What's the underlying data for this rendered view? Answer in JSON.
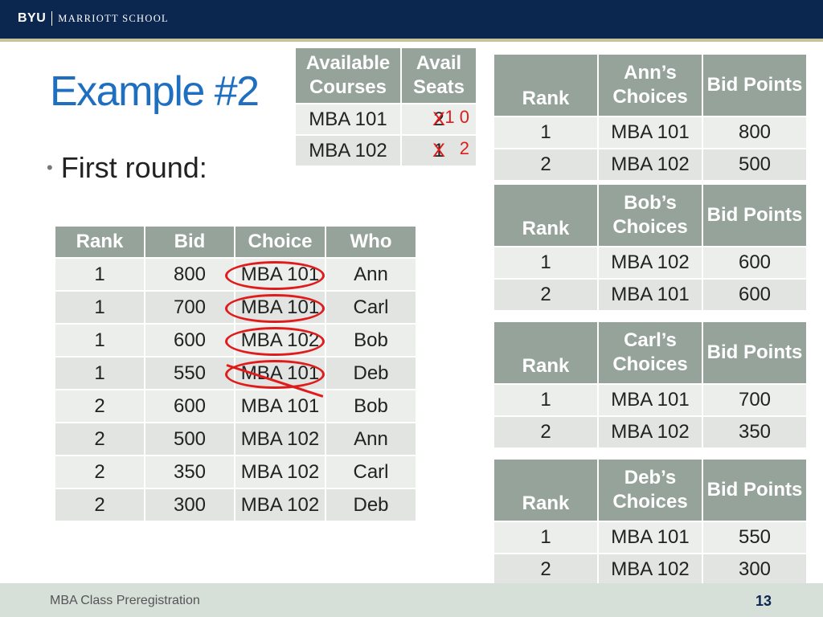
{
  "header": {
    "logo_byu": "BYU",
    "logo_school": "MARRIOTT SCHOOL"
  },
  "slide": {
    "title": "Example #2",
    "bullet": "First round:"
  },
  "avail_table": {
    "headers": [
      "Available Courses",
      "Avail Seats"
    ],
    "rows": [
      {
        "course": "MBA 101",
        "seats": "2",
        "note": "1 0"
      },
      {
        "course": "MBA 102",
        "seats": "1",
        "note": "2"
      }
    ]
  },
  "bids_table": {
    "headers": [
      "Rank",
      "Bid",
      "Choice",
      "Who"
    ],
    "rows": [
      {
        "rank": "1",
        "bid": "800",
        "choice": "MBA 101",
        "who": "Ann"
      },
      {
        "rank": "1",
        "bid": "700",
        "choice": "MBA 101",
        "who": "Carl"
      },
      {
        "rank": "1",
        "bid": "600",
        "choice": "MBA 102",
        "who": "Bob"
      },
      {
        "rank": "1",
        "bid": "550",
        "choice": "MBA 101",
        "who": "Deb"
      },
      {
        "rank": "2",
        "bid": "600",
        "choice": "MBA 101",
        "who": "Bob"
      },
      {
        "rank": "2",
        "bid": "500",
        "choice": "MBA 102",
        "who": "Ann"
      },
      {
        "rank": "2",
        "bid": "350",
        "choice": "MBA 102",
        "who": "Carl"
      },
      {
        "rank": "2",
        "bid": "300",
        "choice": "MBA 102",
        "who": "Deb"
      }
    ]
  },
  "choice_tables": [
    {
      "headers": [
        "Rank",
        "Ann’s Choices",
        "Bid Points"
      ],
      "rows": [
        [
          "1",
          "MBA 101",
          "800"
        ],
        [
          "2",
          "MBA 102",
          "500"
        ]
      ]
    },
    {
      "headers": [
        "Rank",
        "Bob’s Choices",
        "Bid Points"
      ],
      "rows": [
        [
          "1",
          "MBA 102",
          "600"
        ],
        [
          "2",
          "MBA 101",
          "600"
        ]
      ]
    },
    {
      "headers": [
        "Rank",
        "Carl’s Choices",
        "Bid Points"
      ],
      "rows": [
        [
          "1",
          "MBA 101",
          "700"
        ],
        [
          "2",
          "MBA 102",
          "350"
        ]
      ]
    },
    {
      "headers": [
        "Rank",
        "Deb’s Choices",
        "Bid Points"
      ],
      "rows": [
        [
          "1",
          "MBA 101",
          "550"
        ],
        [
          "2",
          "MBA 102",
          "300"
        ]
      ]
    }
  ],
  "footer": {
    "text": "MBA Class Preregistration",
    "page": "13"
  },
  "colors": {
    "brand_navy": "#0b2750",
    "title_blue": "#1f6fc0",
    "header_gray_green": "#95a39a",
    "annotation_red": "#e01b1b"
  }
}
